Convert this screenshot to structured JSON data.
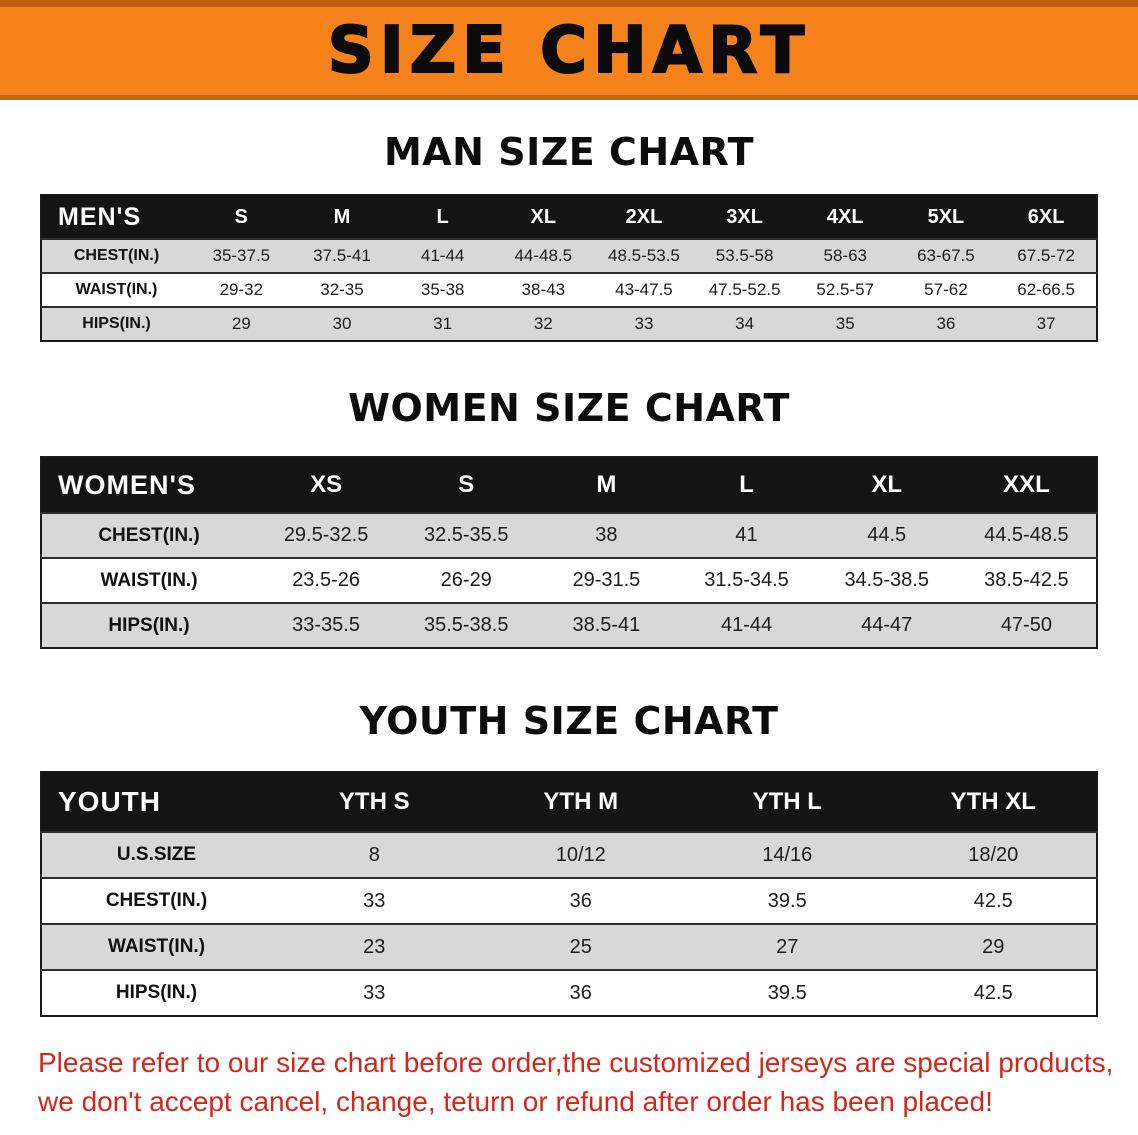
{
  "banner": {
    "title": "SIZE CHART"
  },
  "men": {
    "heading": "MAN SIZE CHART",
    "corner_label": "MEN'S",
    "columns": [
      "S",
      "M",
      "L",
      "XL",
      "2XL",
      "3XL",
      "4XL",
      "5XL",
      "6XL"
    ],
    "rows": [
      {
        "label": "CHEST(IN.)",
        "values": [
          "35-37.5",
          "37.5-41",
          "41-44",
          "44-48.5",
          "48.5-53.5",
          "53.5-58",
          "58-63",
          "63-67.5",
          "67.5-72"
        ]
      },
      {
        "label": "WAIST(IN.)",
        "values": [
          "29-32",
          "32-35",
          "35-38",
          "38-43",
          "43-47.5",
          "47.5-52.5",
          "52.5-57",
          "57-62",
          "62-66.5"
        ]
      },
      {
        "label": "HIPS(IN.)",
        "values": [
          "29",
          "30",
          "31",
          "32",
          "33",
          "34",
          "35",
          "36",
          "37"
        ]
      }
    ]
  },
  "women": {
    "heading": "WOMEN SIZE CHART",
    "corner_label": "WOMEN'S",
    "columns": [
      "XS",
      "S",
      "M",
      "L",
      "XL",
      "XXL"
    ],
    "rows": [
      {
        "label": "CHEST(IN.)",
        "values": [
          "29.5-32.5",
          "32.5-35.5",
          "38",
          "41",
          "44.5",
          "44.5-48.5"
        ]
      },
      {
        "label": "WAIST(IN.)",
        "values": [
          "23.5-26",
          "26-29",
          "29-31.5",
          "31.5-34.5",
          "34.5-38.5",
          "38.5-42.5"
        ]
      },
      {
        "label": "HIPS(IN.)",
        "values": [
          "33-35.5",
          "35.5-38.5",
          "38.5-41",
          "41-44",
          "44-47",
          "47-50"
        ]
      }
    ]
  },
  "youth": {
    "heading": "YOUTH SIZE CHART",
    "corner_label": "YOUTH",
    "columns": [
      "YTH S",
      "YTH M",
      "YTH L",
      "YTH XL"
    ],
    "rows": [
      {
        "label": "U.S.SIZE",
        "values": [
          "8",
          "10/12",
          "14/16",
          "18/20"
        ]
      },
      {
        "label": "CHEST(IN.)",
        "values": [
          "33",
          "36",
          "39.5",
          "42.5"
        ]
      },
      {
        "label": "WAIST(IN.)",
        "values": [
          "23",
          "25",
          "27",
          "29"
        ]
      },
      {
        "label": "HIPS(IN.)",
        "values": [
          "33",
          "36",
          "39.5",
          "42.5"
        ]
      }
    ]
  },
  "disclaimer": {
    "line1": "Please refer to our size chart before order,the customized jerseys are special products,",
    "line2": "we don't accept cancel, change, teturn or refund after order has been placed!"
  },
  "colors": {
    "banner_orange": "#F6821C",
    "header_black": "#141414",
    "row_gray": "#D8D8D8",
    "disclaimer_red": "#D3271B"
  }
}
